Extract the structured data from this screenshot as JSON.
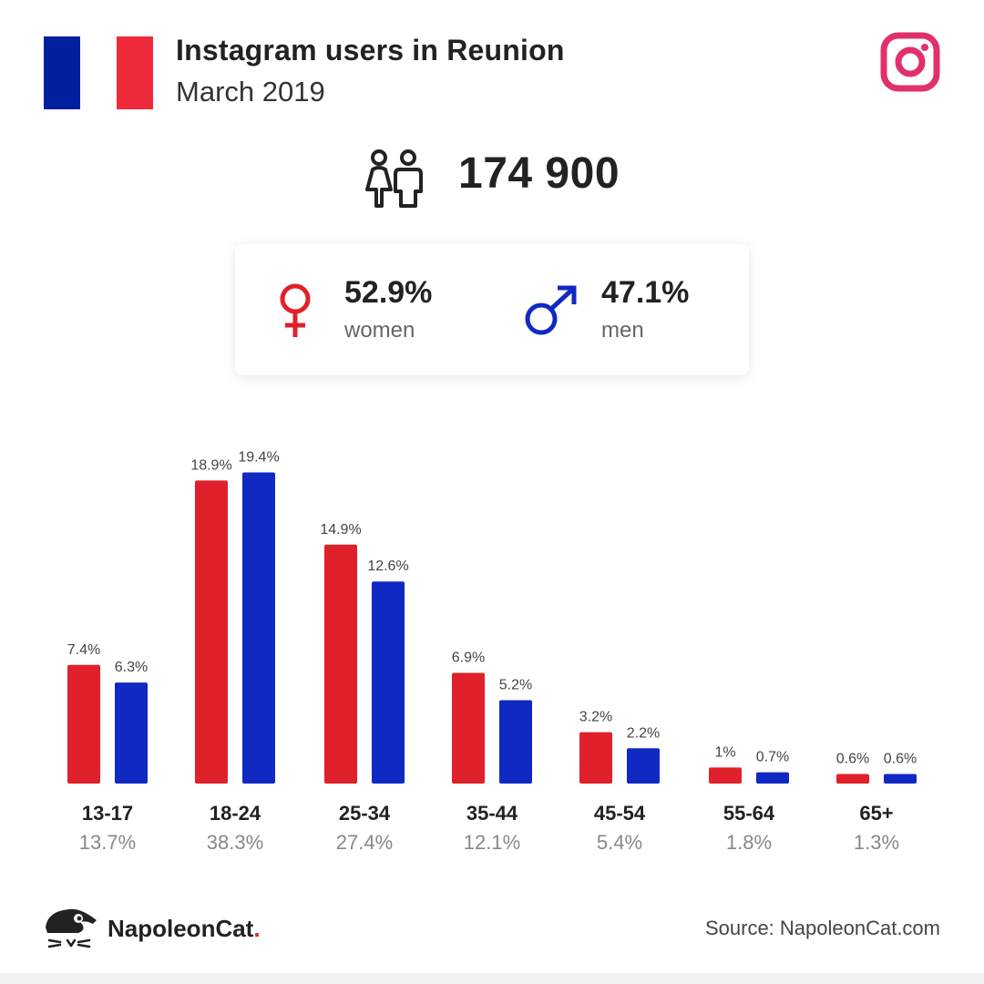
{
  "header": {
    "title": "Instagram users in Reunion",
    "subtitle": "March 2019",
    "flag_colors": {
      "blue": "#00209f",
      "white": "#ffffff",
      "red": "#ef2b3b"
    },
    "social_icon": "instagram-icon",
    "instagram_color": "#e1306c"
  },
  "total": {
    "icon": "people-icon",
    "value": "174 900"
  },
  "gender": {
    "women": {
      "icon": "female-symbol-icon",
      "percent": "52.9%",
      "label": "women",
      "color": "#e0202a"
    },
    "men": {
      "icon": "male-symbol-icon",
      "percent": "47.1%",
      "label": "men",
      "color": "#1029c3"
    }
  },
  "chart_data": {
    "type": "bar",
    "categories": [
      "13-17",
      "18-24",
      "25-34",
      "35-44",
      "45-54",
      "55-64",
      "65+"
    ],
    "category_totals": [
      "13.7%",
      "38.3%",
      "27.4%",
      "12.1%",
      "5.4%",
      "1.8%",
      "1.3%"
    ],
    "series": [
      {
        "values": [
          7.4,
          18.9,
          14.9,
          6.9,
          3.2,
          1,
          0.6
        ],
        "labels": [
          "7.4%",
          "18.9%",
          "14.9%",
          "6.9%",
          "3.2%",
          "1%",
          "0.6%"
        ],
        "color": "#e0202a"
      },
      {
        "values": [
          6.3,
          19.4,
          12.6,
          5.2,
          2.2,
          0.7,
          0.6
        ],
        "labels": [
          "6.3%",
          "19.4%",
          "12.6%",
          "5.2%",
          "2.2%",
          "0.7%",
          "0.6%"
        ],
        "color": "#1029c3"
      }
    ],
    "ylim": [
      0,
      20
    ],
    "grid": false
  },
  "footer": {
    "logo_icon": "napoleoncat-logo-icon",
    "brand_name": "NapoleonCat",
    "brand_dot": ".",
    "source": "Source: NapoleonCat.com"
  }
}
